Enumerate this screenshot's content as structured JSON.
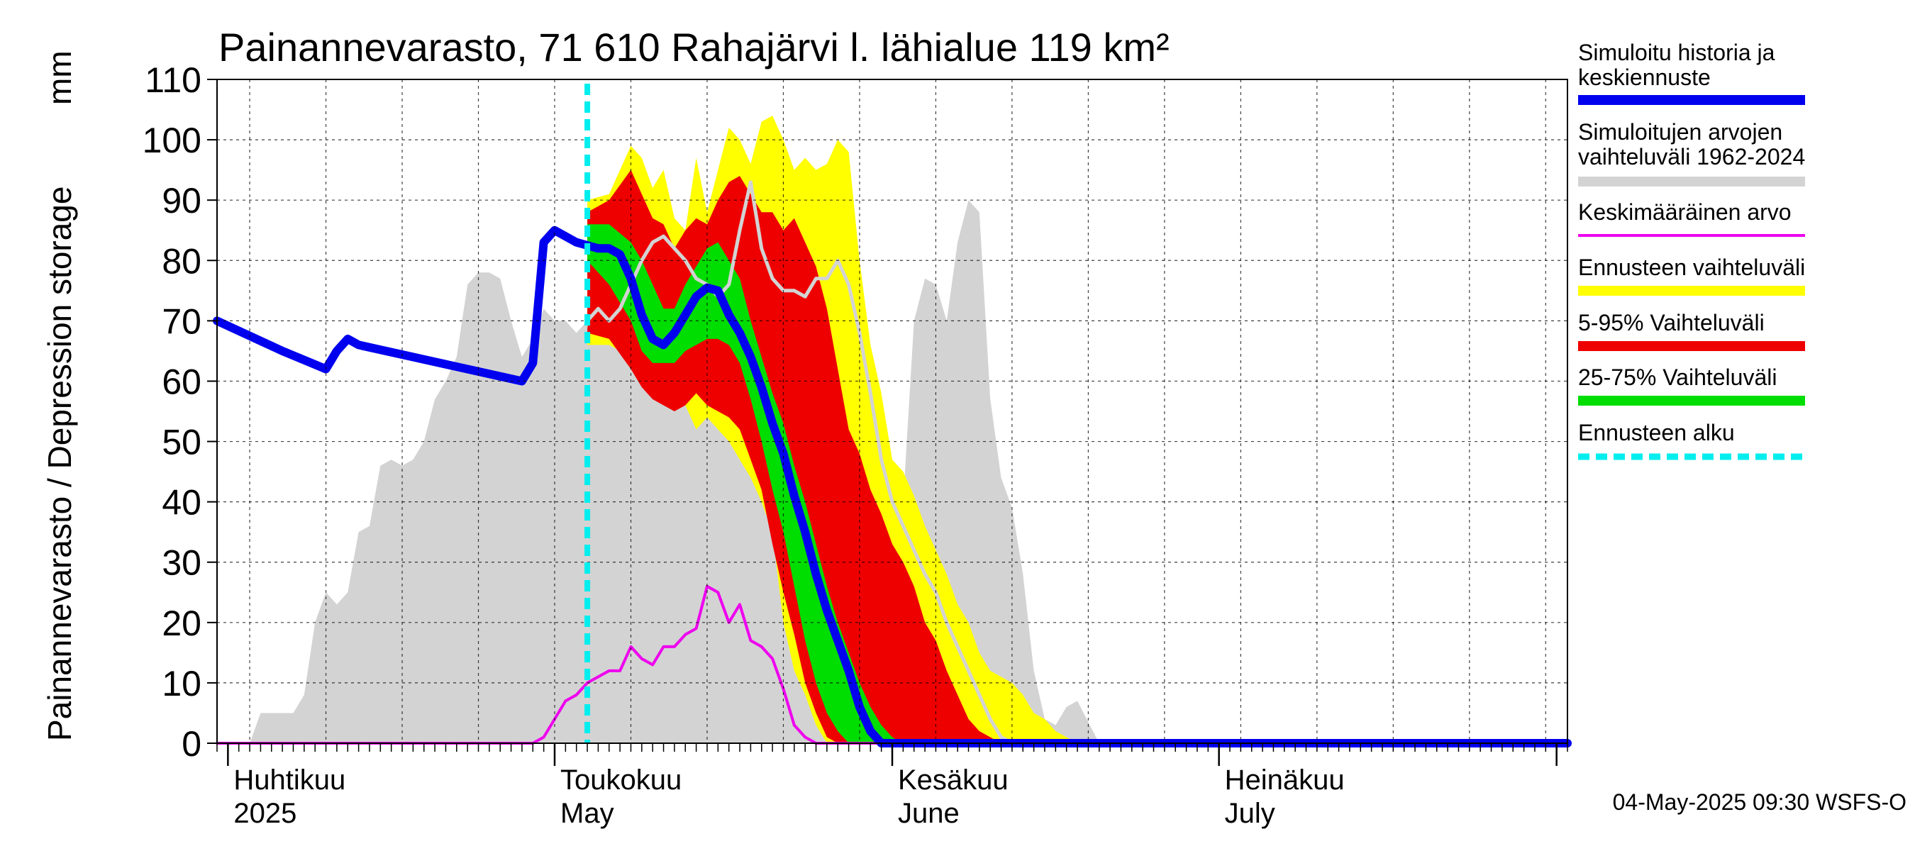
{
  "chart_data": {
    "type": "area",
    "title": "Painannevarasto, 71 610 Rahajärvi l. lähialue 119 km²",
    "ylabel": "Painannevarasto / Depression storage",
    "yunit": "mm",
    "ylim": [
      0,
      110
    ],
    "xlim": [
      "2025-03-31",
      "2025-08-02"
    ],
    "grid": true,
    "legend_position": "right",
    "yticks": [
      0,
      10,
      20,
      30,
      40,
      50,
      60,
      70,
      80,
      90,
      100,
      110
    ],
    "month_labels": [
      {
        "line1": "Huhtikuu",
        "line2": "2025",
        "date": "2025-04-01"
      },
      {
        "line1": "Toukokuu",
        "line2": "May",
        "date": "2025-05-01"
      },
      {
        "line1": "Kesäkuu",
        "line2": "June",
        "date": "2025-06-01"
      },
      {
        "line1": "Heinäkuu",
        "line2": "July",
        "date": "2025-07-01"
      }
    ],
    "month_boundaries": [
      "2025-04-01",
      "2025-05-01",
      "2025-06-01",
      "2025-07-01",
      "2025-08-01"
    ],
    "forecast_start": "2025-05-04",
    "footer": "04-May-2025 09:30 WSFS-O",
    "legend": [
      {
        "label": "Simuloitu historia ja keskiennuste",
        "color": "#0000ee",
        "style": "thick"
      },
      {
        "label": "Simuloitujen arvojen vaihteluväli 1962-2024",
        "color": "#d3d3d3",
        "style": "thick"
      },
      {
        "label": "Keskimääräinen arvo",
        "color": "#ee00ee",
        "style": "thin"
      },
      {
        "label": "Ennusteen vaihteluväli",
        "color": "#ffff00",
        "style": "thick"
      },
      {
        "label": "5-95% Vaihteluväli",
        "color": "#ee0000",
        "style": "thick"
      },
      {
        "label": "25-75% Vaihteluväli",
        "color": "#00dd00",
        "style": "thick"
      },
      {
        "label": "Ennusteen alku",
        "color": "#00eeee",
        "style": "dashed"
      }
    ],
    "series": [
      {
        "name": "Simuloitujen arvojen vaihteluväli 1962-2024",
        "kind": "band",
        "color": "#d3d3d3",
        "x": [
          "2025-03-31",
          "2025-04-03",
          "2025-04-04",
          "2025-04-07",
          "2025-04-08",
          "2025-04-09",
          "2025-04-10",
          "2025-04-11",
          "2025-04-12",
          "2025-04-13",
          "2025-04-14",
          "2025-04-15",
          "2025-04-16",
          "2025-04-17",
          "2025-04-18",
          "2025-04-19",
          "2025-04-20",
          "2025-04-21",
          "2025-04-22",
          "2025-04-23",
          "2025-04-24",
          "2025-04-25",
          "2025-04-26",
          "2025-04-27",
          "2025-04-28",
          "2025-04-29",
          "2025-04-30",
          "2025-05-01",
          "2025-05-02",
          "2025-05-03",
          "2025-05-04",
          "2025-05-05",
          "2025-05-06",
          "2025-05-08",
          "2025-05-10",
          "2025-05-12",
          "2025-05-14",
          "2025-05-16",
          "2025-05-17",
          "2025-05-18",
          "2025-05-19",
          "2025-05-20",
          "2025-05-21",
          "2025-05-22",
          "2025-05-23",
          "2025-05-24",
          "2025-05-25",
          "2025-05-26",
          "2025-05-27",
          "2025-05-28",
          "2025-05-29",
          "2025-05-30",
          "2025-05-31",
          "2025-06-01",
          "2025-06-02",
          "2025-06-03",
          "2025-06-04",
          "2025-06-05",
          "2025-06-06",
          "2025-06-07",
          "2025-06-08",
          "2025-06-09",
          "2025-06-10",
          "2025-06-11",
          "2025-06-12",
          "2025-06-13",
          "2025-06-14",
          "2025-06-15",
          "2025-06-16",
          "2025-06-17",
          "2025-06-18",
          "2025-06-20",
          "2025-08-02"
        ],
        "high": [
          0,
          0,
          5,
          5,
          8,
          20,
          25,
          23,
          25,
          35,
          36,
          46,
          47,
          46,
          47,
          50,
          57,
          60,
          64,
          76,
          78,
          78,
          77,
          70,
          64,
          67,
          72,
          70,
          70,
          68,
          70,
          70,
          69,
          68,
          68,
          65,
          63,
          60,
          58,
          56,
          55,
          56,
          53,
          50,
          44,
          35,
          28,
          21,
          15,
          10,
          6,
          7,
          8,
          20,
          40,
          70,
          77,
          76,
          70,
          83,
          90,
          88,
          57,
          44,
          39,
          28,
          12,
          4,
          3,
          6,
          7,
          0,
          0
        ],
        "low": [
          0,
          0,
          0,
          0,
          0,
          0,
          0,
          0,
          0,
          0,
          0,
          0,
          0,
          0,
          0,
          0,
          0,
          0,
          0,
          0,
          0,
          0,
          0,
          0,
          0,
          0,
          0,
          0,
          0,
          0,
          0,
          0,
          0,
          0,
          0,
          0,
          0,
          0,
          0,
          0,
          0,
          0,
          0,
          0,
          0,
          0,
          0,
          0,
          0,
          0,
          0,
          0,
          0,
          0,
          0,
          0,
          0,
          0,
          0,
          0,
          0,
          0,
          0,
          0,
          0,
          0,
          0,
          0,
          0,
          0,
          0,
          0,
          0
        ]
      },
      {
        "name": "Ennusteen vaihteluväli",
        "kind": "band",
        "color": "#ffff00",
        "x": [
          "2025-05-04",
          "2025-05-06",
          "2025-05-08",
          "2025-05-09",
          "2025-05-10",
          "2025-05-11",
          "2025-05-12",
          "2025-05-13",
          "2025-05-14",
          "2025-05-15",
          "2025-05-16",
          "2025-05-17",
          "2025-05-18",
          "2025-05-19",
          "2025-05-20",
          "2025-05-21",
          "2025-05-22",
          "2025-05-23",
          "2025-05-24",
          "2025-05-25",
          "2025-05-26",
          "2025-05-27",
          "2025-05-28",
          "2025-05-29",
          "2025-05-30",
          "2025-05-31",
          "2025-06-01",
          "2025-06-02",
          "2025-06-03",
          "2025-06-04",
          "2025-06-05",
          "2025-06-06",
          "2025-06-07",
          "2025-06-08",
          "2025-06-09",
          "2025-06-10",
          "2025-06-11",
          "2025-06-12",
          "2025-06-13",
          "2025-06-14",
          "2025-06-15",
          "2025-06-16",
          "2025-06-17",
          "2025-06-18"
        ],
        "high": [
          90,
          91,
          99,
          97,
          92,
          95,
          87,
          85,
          97,
          88,
          95,
          102,
          100,
          96,
          103,
          104,
          100,
          95,
          97,
          95,
          96,
          100,
          98,
          80,
          66,
          58,
          47,
          45,
          41,
          36,
          32,
          28,
          23,
          20,
          15,
          12,
          11,
          10,
          8,
          5,
          4,
          2,
          1,
          0
        ],
        "low": [
          66,
          66,
          64,
          62,
          60,
          58,
          58,
          56,
          52,
          54,
          52,
          50,
          47,
          44,
          40,
          35,
          20,
          12,
          8,
          3,
          0,
          0,
          0,
          0,
          0,
          0,
          0,
          0,
          0,
          0,
          0,
          0,
          0,
          0,
          0,
          0,
          0,
          0,
          0,
          0,
          0,
          0,
          0,
          0
        ]
      },
      {
        "name": "5-95% Vaihteluväli",
        "kind": "band",
        "color": "#ee0000",
        "x": [
          "2025-05-04",
          "2025-05-06",
          "2025-05-08",
          "2025-05-09",
          "2025-05-10",
          "2025-05-11",
          "2025-05-12",
          "2025-05-13",
          "2025-05-14",
          "2025-05-15",
          "2025-05-16",
          "2025-05-17",
          "2025-05-18",
          "2025-05-19",
          "2025-05-20",
          "2025-05-21",
          "2025-05-22",
          "2025-05-23",
          "2025-05-24",
          "2025-05-25",
          "2025-05-26",
          "2025-05-27",
          "2025-05-28",
          "2025-05-29",
          "2025-05-30",
          "2025-05-31",
          "2025-06-01",
          "2025-06-02",
          "2025-06-03",
          "2025-06-04",
          "2025-06-05",
          "2025-06-06",
          "2025-06-07",
          "2025-06-08",
          "2025-06-09",
          "2025-06-10",
          "2025-06-11",
          "2025-06-12",
          "2025-06-13"
        ],
        "high": [
          88,
          90,
          95,
          91,
          87,
          86,
          82,
          85,
          87,
          86,
          90,
          93,
          94,
          91,
          88,
          88,
          85,
          87,
          83,
          79,
          72,
          62,
          52,
          48,
          42,
          38,
          33,
          30,
          26,
          20,
          17,
          12,
          8,
          4,
          2,
          1,
          0,
          0,
          0
        ],
        "low": [
          68,
          67,
          62,
          59,
          57,
          56,
          55,
          56,
          58,
          56,
          55,
          54,
          52,
          47,
          42,
          33,
          25,
          18,
          10,
          5,
          1,
          0,
          0,
          0,
          0,
          0,
          0,
          0,
          0,
          0,
          0,
          0,
          0,
          0,
          0,
          0,
          0,
          0,
          0
        ]
      },
      {
        "name": "25-75% Vaihteluväli",
        "kind": "band",
        "color": "#00dd00",
        "x": [
          "2025-05-04",
          "2025-05-06",
          "2025-05-08",
          "2025-05-09",
          "2025-05-10",
          "2025-05-11",
          "2025-05-12",
          "2025-05-13",
          "2025-05-14",
          "2025-05-15",
          "2025-05-16",
          "2025-05-17",
          "2025-05-18",
          "2025-05-19",
          "2025-05-20",
          "2025-05-21",
          "2025-05-22",
          "2025-05-23",
          "2025-05-24",
          "2025-05-25",
          "2025-05-26",
          "2025-05-27",
          "2025-05-28",
          "2025-05-29",
          "2025-05-30",
          "2025-05-31",
          "2025-06-01",
          "2025-06-02",
          "2025-06-03",
          "2025-06-04"
        ],
        "high": [
          86,
          86,
          83,
          80,
          76,
          72,
          72,
          76,
          79,
          82,
          83,
          80,
          77,
          70,
          64,
          58,
          53,
          46,
          40,
          33,
          26,
          20,
          15,
          10,
          6,
          3,
          1,
          0,
          0,
          0
        ],
        "low": [
          80,
          76,
          70,
          65,
          63,
          63,
          63,
          65,
          66,
          67,
          67,
          66,
          63,
          57,
          50,
          42,
          35,
          26,
          17,
          10,
          5,
          2,
          0,
          0,
          0,
          0,
          0,
          0,
          0,
          0
        ]
      },
      {
        "name": "Keskimääräinen arvo",
        "kind": "line",
        "color": "#ee00ee",
        "width": 4,
        "x": [
          "2025-03-31",
          "2025-04-29",
          "2025-04-30",
          "2025-05-01",
          "2025-05-02",
          "2025-05-03",
          "2025-05-04",
          "2025-05-06",
          "2025-05-07",
          "2025-05-08",
          "2025-05-09",
          "2025-05-10",
          "2025-05-11",
          "2025-05-12",
          "2025-05-13",
          "2025-05-14",
          "2025-05-15",
          "2025-05-16",
          "2025-05-17",
          "2025-05-18",
          "2025-05-19",
          "2025-05-20",
          "2025-05-21",
          "2025-05-22",
          "2025-05-23",
          "2025-05-24",
          "2025-05-25",
          "2025-05-26",
          "2025-05-27",
          "2025-08-02"
        ],
        "y": [
          0,
          0,
          1,
          4,
          7,
          8,
          10,
          12,
          12,
          16,
          14,
          13,
          16,
          16,
          18,
          19,
          26,
          25,
          20,
          23,
          17,
          16,
          14,
          9,
          3,
          1,
          0,
          0,
          0,
          0
        ]
      },
      {
        "name": "Forecast reference",
        "kind": "line",
        "color": "#d3d3d3",
        "width": 5,
        "x": [
          "2025-05-03",
          "2025-05-04",
          "2025-05-05",
          "2025-05-06",
          "2025-05-07",
          "2025-05-08",
          "2025-05-09",
          "2025-05-10",
          "2025-05-11",
          "2025-05-12",
          "2025-05-13",
          "2025-05-14",
          "2025-05-15",
          "2025-05-16",
          "2025-05-17",
          "2025-05-18",
          "2025-05-19",
          "2025-05-20",
          "2025-05-21",
          "2025-05-22",
          "2025-05-23",
          "2025-05-24",
          "2025-05-25",
          "2025-05-26",
          "2025-05-27",
          "2025-05-28",
          "2025-05-29",
          "2025-05-30",
          "2025-05-31",
          "2025-06-01",
          "2025-06-02",
          "2025-06-03",
          "2025-06-04",
          "2025-06-05",
          "2025-06-06",
          "2025-06-07",
          "2025-06-08",
          "2025-06-09",
          "2025-06-10",
          "2025-06-11",
          "2025-06-12",
          "2025-06-13",
          "2025-06-14",
          "2025-06-15",
          "2025-06-16",
          "2025-06-17",
          "2025-06-18"
        ],
        "y": [
          63,
          70,
          72,
          70,
          72,
          76,
          80,
          83,
          84,
          82,
          80,
          77,
          76,
          74,
          76,
          85,
          93,
          82,
          77,
          75,
          75,
          74,
          77,
          77,
          80,
          76,
          68,
          58,
          47,
          40,
          36,
          32,
          28,
          25,
          20,
          16,
          12,
          8,
          4,
          1,
          0,
          0,
          0,
          0,
          0,
          0,
          0
        ]
      },
      {
        "name": "Simuloitu historia ja keskiennuste",
        "kind": "line",
        "color": "#0000ee",
        "width": 12,
        "x": [
          "2025-03-31",
          "2025-04-06",
          "2025-04-10",
          "2025-04-11",
          "2025-04-12",
          "2025-04-13",
          "2025-04-28",
          "2025-04-29",
          "2025-04-30",
          "2025-05-01",
          "2025-05-03",
          "2025-05-04",
          "2025-05-05",
          "2025-05-06",
          "2025-05-07",
          "2025-05-08",
          "2025-05-09",
          "2025-05-10",
          "2025-05-11",
          "2025-05-12",
          "2025-05-13",
          "2025-05-14",
          "2025-05-15",
          "2025-05-16",
          "2025-05-17",
          "2025-05-18",
          "2025-05-19",
          "2025-05-20",
          "2025-05-21",
          "2025-05-22",
          "2025-05-23",
          "2025-05-24",
          "2025-05-25",
          "2025-05-26",
          "2025-05-27",
          "2025-05-28",
          "2025-05-29",
          "2025-05-30",
          "2025-05-31",
          "2025-06-01",
          "2025-06-02",
          "2025-08-02"
        ],
        "y": [
          70,
          65,
          62,
          65,
          67,
          66,
          60,
          63,
          83,
          85,
          83,
          82.5,
          82,
          82,
          81,
          77,
          71,
          67,
          66,
          68,
          71,
          74,
          75.5,
          75,
          71,
          68,
          64,
          59,
          53,
          48,
          41,
          35,
          28,
          22,
          17,
          12,
          6,
          2,
          0,
          0,
          0,
          0
        ]
      }
    ]
  }
}
